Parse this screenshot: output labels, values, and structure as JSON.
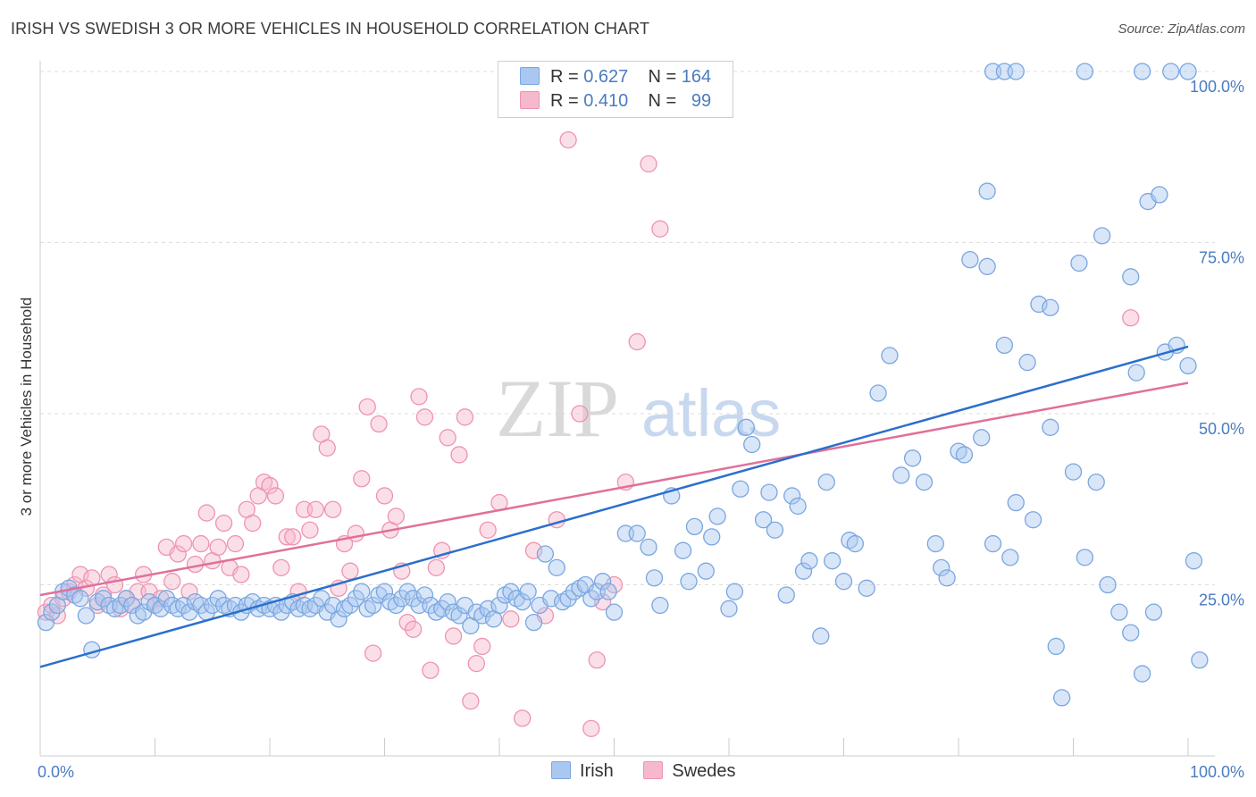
{
  "header": {
    "title": "IRISH VS SWEDISH 3 OR MORE VEHICLES IN HOUSEHOLD CORRELATION CHART",
    "source": "Source: ZipAtlas.com"
  },
  "watermark": {
    "zip": "ZIP",
    "atlas": "atlas"
  },
  "legend": {
    "rows": [
      {
        "r_label": "R =",
        "r_value": "0.627",
        "n_label": "N =",
        "n_value": "164"
      },
      {
        "r_label": "R =",
        "r_value": "0.410",
        "n_label": "N =",
        "n_value": "99"
      }
    ]
  },
  "colors": {
    "irish_fill": "#a9c7f0",
    "irish_stroke": "#7aa6e0",
    "irish_line": "#2b6fcc",
    "swedes_fill": "#f6b9cc",
    "swedes_stroke": "#ee93b1",
    "swedes_line": "#e0709a",
    "tick_text": "#4a7cc0",
    "grid": "#dddddd"
  },
  "chart_data": {
    "type": "scatter",
    "title": "IRISH VS SWEDISH 3 OR MORE VEHICLES IN HOUSEHOLD CORRELATION CHART",
    "xlabel": "",
    "ylabel": "3 or more Vehicles in Household",
    "xlim": [
      0,
      100
    ],
    "ylim": [
      0,
      100
    ],
    "x_tick_labels": [
      "0.0%",
      "100.0%"
    ],
    "y_ticks": [
      25,
      50,
      75,
      100
    ],
    "y_tick_labels": [
      "25.0%",
      "50.0%",
      "75.0%",
      "100.0%"
    ],
    "grid": true,
    "legend_position": "top-center",
    "series": [
      {
        "name": "Irish",
        "R": 0.627,
        "N": 164,
        "trend": {
          "x": [
            0,
            100
          ],
          "y": [
            13.0,
            59.8
          ]
        },
        "points": [
          [
            0.5,
            19.5
          ],
          [
            1,
            21
          ],
          [
            1.5,
            22
          ],
          [
            2,
            24
          ],
          [
            2.5,
            24.5
          ],
          [
            3,
            23.5
          ],
          [
            3.5,
            23
          ],
          [
            4,
            20.5
          ],
          [
            4.5,
            15.5
          ],
          [
            5,
            22.5
          ],
          [
            5.5,
            23
          ],
          [
            6,
            22
          ],
          [
            6.5,
            21.5
          ],
          [
            7,
            22
          ],
          [
            7.5,
            23
          ],
          [
            8,
            22
          ],
          [
            8.5,
            20.5
          ],
          [
            9,
            21
          ],
          [
            9.5,
            22.5
          ],
          [
            10,
            22
          ],
          [
            10.5,
            21.5
          ],
          [
            11,
            23
          ],
          [
            11.5,
            22
          ],
          [
            12,
            21.5
          ],
          [
            12.5,
            22
          ],
          [
            13,
            21
          ],
          [
            13.5,
            22.5
          ],
          [
            14,
            22
          ],
          [
            14.5,
            21
          ],
          [
            15,
            22
          ],
          [
            15.5,
            23
          ],
          [
            16,
            22
          ],
          [
            16.5,
            21.5
          ],
          [
            17,
            22
          ],
          [
            17.5,
            21
          ],
          [
            18,
            22
          ],
          [
            18.5,
            22.5
          ],
          [
            19,
            21.5
          ],
          [
            19.5,
            22
          ],
          [
            20,
            21.5
          ],
          [
            20.5,
            22
          ],
          [
            21,
            21
          ],
          [
            21.5,
            22
          ],
          [
            22,
            22.5
          ],
          [
            22.5,
            21.5
          ],
          [
            23,
            22
          ],
          [
            23.5,
            21.5
          ],
          [
            24,
            22
          ],
          [
            24.5,
            23
          ],
          [
            25,
            21
          ],
          [
            25.5,
            22
          ],
          [
            26,
            20
          ],
          [
            26.5,
            21.5
          ],
          [
            27,
            22
          ],
          [
            27.5,
            23
          ],
          [
            28,
            24
          ],
          [
            28.5,
            21.5
          ],
          [
            29,
            22
          ],
          [
            29.5,
            23.5
          ],
          [
            30,
            24
          ],
          [
            30.5,
            22.5
          ],
          [
            31,
            22
          ],
          [
            31.5,
            23
          ],
          [
            32,
            24
          ],
          [
            32.5,
            23
          ],
          [
            33,
            22
          ],
          [
            33.5,
            23.5
          ],
          [
            34,
            22
          ],
          [
            34.5,
            21
          ],
          [
            35,
            21.5
          ],
          [
            35.5,
            22.5
          ],
          [
            36,
            21
          ],
          [
            36.5,
            20.5
          ],
          [
            37,
            22
          ],
          [
            37.5,
            19
          ],
          [
            38,
            21
          ],
          [
            38.5,
            20.5
          ],
          [
            39,
            21.5
          ],
          [
            39.5,
            20
          ],
          [
            40,
            22
          ],
          [
            40.5,
            23.5
          ],
          [
            41,
            24
          ],
          [
            41.5,
            23
          ],
          [
            42,
            22.5
          ],
          [
            42.5,
            24
          ],
          [
            43,
            19.5
          ],
          [
            43.5,
            22
          ],
          [
            44,
            29.5
          ],
          [
            44.5,
            23
          ],
          [
            45,
            27.5
          ],
          [
            45.5,
            22.5
          ],
          [
            46,
            23
          ],
          [
            46.5,
            24
          ],
          [
            47,
            24.5
          ],
          [
            47.5,
            25
          ],
          [
            48,
            23
          ],
          [
            48.5,
            24
          ],
          [
            49,
            25.5
          ],
          [
            49.5,
            24
          ],
          [
            50,
            21
          ],
          [
            51,
            32.5
          ],
          [
            52,
            32.5
          ],
          [
            53,
            30.5
          ],
          [
            53.5,
            26
          ],
          [
            54,
            22
          ],
          [
            55,
            38
          ],
          [
            56,
            30
          ],
          [
            56.5,
            25.5
          ],
          [
            57,
            33.5
          ],
          [
            58,
            27
          ],
          [
            58.5,
            32
          ],
          [
            59,
            35
          ],
          [
            60,
            21.5
          ],
          [
            60.5,
            24
          ],
          [
            61,
            39
          ],
          [
            61.5,
            48
          ],
          [
            62,
            45.5
          ],
          [
            63,
            34.5
          ],
          [
            63.5,
            38.5
          ],
          [
            64,
            33
          ],
          [
            65,
            23.5
          ],
          [
            65.5,
            38
          ],
          [
            66,
            36.5
          ],
          [
            66.5,
            27
          ],
          [
            67,
            28.5
          ],
          [
            68,
            17.5
          ],
          [
            68.5,
            40
          ],
          [
            69,
            28.5
          ],
          [
            70,
            25.5
          ],
          [
            70.5,
            31.5
          ],
          [
            71,
            31
          ],
          [
            72,
            24.5
          ],
          [
            73,
            53
          ],
          [
            74,
            58.5
          ],
          [
            75,
            41
          ],
          [
            76,
            43.5
          ],
          [
            77,
            40
          ],
          [
            78,
            31
          ],
          [
            78.5,
            27.5
          ],
          [
            79,
            26
          ],
          [
            80,
            44.5
          ],
          [
            80.5,
            44
          ],
          [
            81,
            72.5
          ],
          [
            82,
            46.5
          ],
          [
            82.5,
            71.5
          ],
          [
            83,
            31
          ],
          [
            84,
            60
          ],
          [
            84.5,
            29
          ],
          [
            85,
            37
          ],
          [
            86,
            57.5
          ],
          [
            86.5,
            34.5
          ],
          [
            87,
            66
          ],
          [
            88,
            48
          ],
          [
            88.5,
            16
          ],
          [
            89,
            8.5
          ],
          [
            90,
            41.5
          ],
          [
            90.5,
            72
          ],
          [
            91,
            29
          ],
          [
            92,
            40
          ],
          [
            92.5,
            76
          ],
          [
            93,
            25
          ],
          [
            94,
            21
          ],
          [
            95,
            70
          ],
          [
            95.5,
            56
          ],
          [
            96,
            12
          ],
          [
            96.5,
            81
          ],
          [
            97,
            21
          ],
          [
            97.5,
            82
          ],
          [
            98,
            59
          ],
          [
            99,
            60
          ],
          [
            100,
            57
          ],
          [
            100.5,
            28.5
          ],
          [
            101,
            14
          ],
          [
            83,
            100
          ],
          [
            84,
            100
          ],
          [
            85,
            100
          ],
          [
            82.5,
            82.5
          ],
          [
            91,
            100
          ],
          [
            88,
            65.5
          ],
          [
            95,
            18
          ],
          [
            96,
            100
          ],
          [
            98.5,
            100
          ],
          [
            100,
            100
          ]
        ]
      },
      {
        "name": "Swedes",
        "R": 0.41,
        "N": 99,
        "trend": {
          "x": [
            0,
            100
          ],
          "y": [
            23.5,
            54.5
          ]
        },
        "points": [
          [
            0.5,
            21
          ],
          [
            1,
            22
          ],
          [
            1.5,
            20.5
          ],
          [
            2,
            23
          ],
          [
            2.5,
            24
          ],
          [
            3,
            25
          ],
          [
            3.5,
            26.5
          ],
          [
            4,
            24.5
          ],
          [
            4.5,
            26
          ],
          [
            5,
            22
          ],
          [
            5.5,
            23.5
          ],
          [
            6,
            26.5
          ],
          [
            6.5,
            25
          ],
          [
            7,
            21.5
          ],
          [
            7.5,
            23
          ],
          [
            8,
            22
          ],
          [
            8.5,
            24
          ],
          [
            9,
            26.5
          ],
          [
            9.5,
            24
          ],
          [
            10,
            22
          ],
          [
            10.5,
            23
          ],
          [
            11,
            30.5
          ],
          [
            11.5,
            25.5
          ],
          [
            12,
            29.5
          ],
          [
            12.5,
            31
          ],
          [
            13,
            24
          ],
          [
            13.5,
            28
          ],
          [
            14,
            31
          ],
          [
            14.5,
            35.5
          ],
          [
            15,
            28.5
          ],
          [
            15.5,
            30.5
          ],
          [
            16,
            34
          ],
          [
            16.5,
            27.5
          ],
          [
            17,
            31
          ],
          [
            17.5,
            26.5
          ],
          [
            18,
            36
          ],
          [
            18.5,
            34
          ],
          [
            19,
            38
          ],
          [
            19.5,
            40
          ],
          [
            20,
            39.5
          ],
          [
            20.5,
            38
          ],
          [
            21,
            27.5
          ],
          [
            21.5,
            32
          ],
          [
            22,
            32
          ],
          [
            22.5,
            24
          ],
          [
            23,
            36
          ],
          [
            23.5,
            33
          ],
          [
            24,
            36
          ],
          [
            24.5,
            47
          ],
          [
            25,
            45
          ],
          [
            25.5,
            36
          ],
          [
            26,
            24.5
          ],
          [
            26.5,
            31
          ],
          [
            27,
            27
          ],
          [
            27.5,
            32.5
          ],
          [
            28,
            40.5
          ],
          [
            28.5,
            51
          ],
          [
            29,
            15
          ],
          [
            29.5,
            48.5
          ],
          [
            30,
            38
          ],
          [
            30.5,
            33
          ],
          [
            31,
            35
          ],
          [
            31.5,
            27
          ],
          [
            32,
            19.5
          ],
          [
            32.5,
            18.5
          ],
          [
            33,
            52.5
          ],
          [
            33.5,
            49.5
          ],
          [
            34,
            12.5
          ],
          [
            34.5,
            27.5
          ],
          [
            35,
            30
          ],
          [
            35.5,
            46.5
          ],
          [
            36,
            17.5
          ],
          [
            36.5,
            44
          ],
          [
            37,
            49.5
          ],
          [
            37.5,
            8
          ],
          [
            38,
            13.5
          ],
          [
            38.5,
            16
          ],
          [
            39,
            33
          ],
          [
            40,
            37
          ],
          [
            41,
            20
          ],
          [
            42,
            5.5
          ],
          [
            43,
            30
          ],
          [
            44,
            20.5
          ],
          [
            45,
            34.5
          ],
          [
            46,
            90
          ],
          [
            47,
            50
          ],
          [
            48,
            4
          ],
          [
            48.5,
            14
          ],
          [
            49,
            22.5
          ],
          [
            50,
            25
          ],
          [
            51,
            40
          ],
          [
            52,
            60.5
          ],
          [
            53,
            86.5
          ],
          [
            54,
            77
          ],
          [
            95,
            64
          ]
        ]
      }
    ]
  }
}
